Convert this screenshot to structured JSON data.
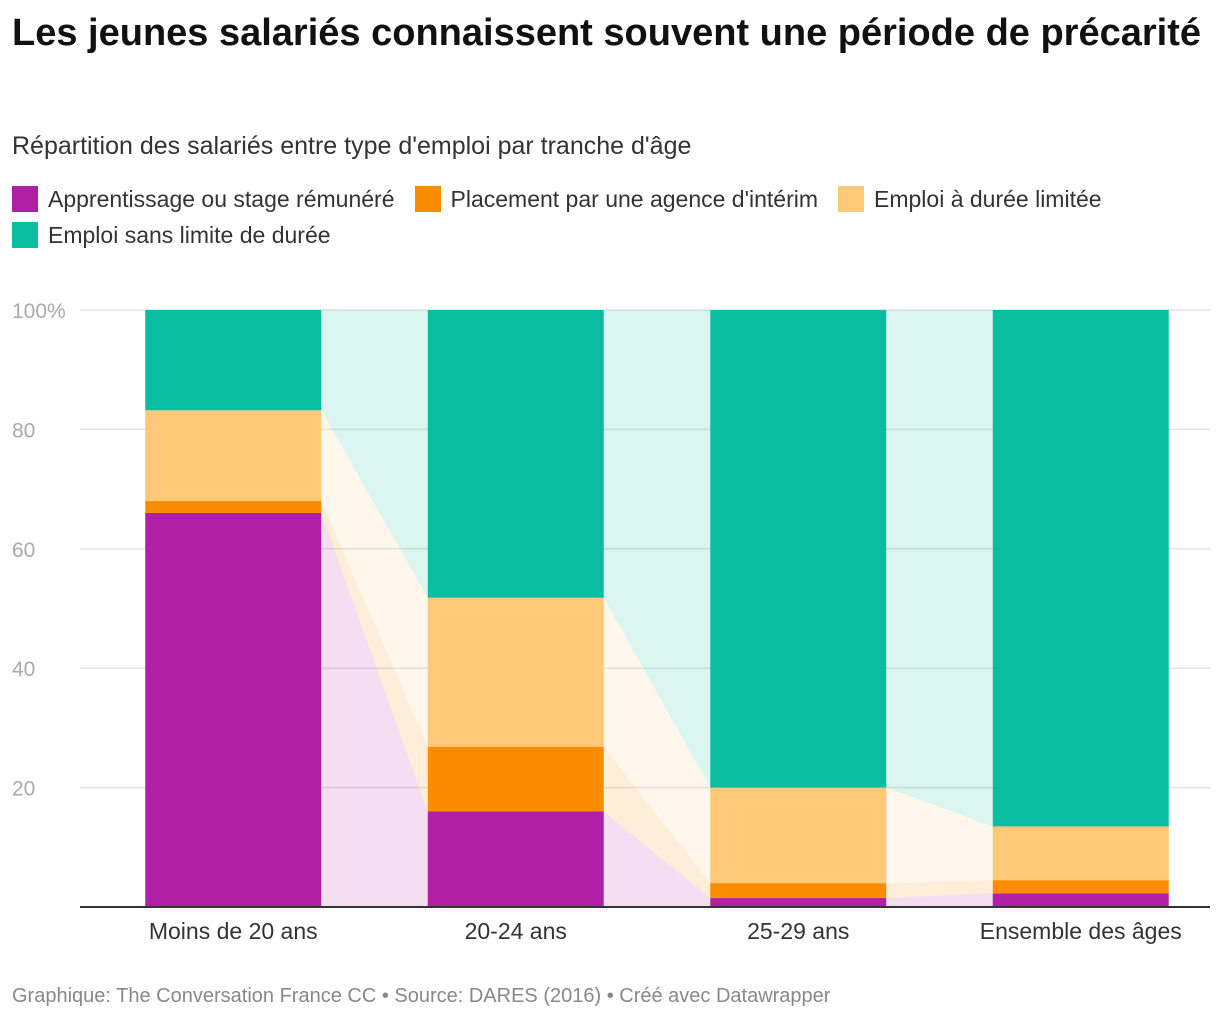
{
  "title": "Les jeunes salariés connaissent souvent une période de précarité",
  "subtitle": "Répartition des salariés entre type d'emploi par tranche d'âge",
  "footer": "Graphique: The Conversation France CC • Source: DARES (2016) • Créé avec Datawrapper",
  "chart_data": {
    "type": "bar",
    "stacked": true,
    "categories": [
      "Moins de 20 ans",
      "20-24 ans",
      "25-29 ans",
      "Ensemble des âges"
    ],
    "series": [
      {
        "name": "Apprentissage ou stage rémunéré",
        "color": "#b020a6",
        "values": [
          66,
          16,
          1.5,
          2.3
        ]
      },
      {
        "name": "Placement par une agence d'intérim",
        "color": "#fa8c00",
        "values": [
          2,
          10.8,
          2.5,
          2.2
        ]
      },
      {
        "name": "Emploi à durée limitée",
        "color": "#fdc978",
        "values": [
          15.2,
          25,
          16,
          9
        ]
      },
      {
        "name": "Emploi sans limite de durée",
        "color": "#0bbda0",
        "values": [
          16.8,
          48.2,
          80,
          86.5
        ]
      }
    ],
    "y_ticks": [
      "100%",
      "80",
      "60",
      "40",
      "20"
    ],
    "ylim": [
      0,
      100
    ],
    "grid": true,
    "legend": "top"
  }
}
